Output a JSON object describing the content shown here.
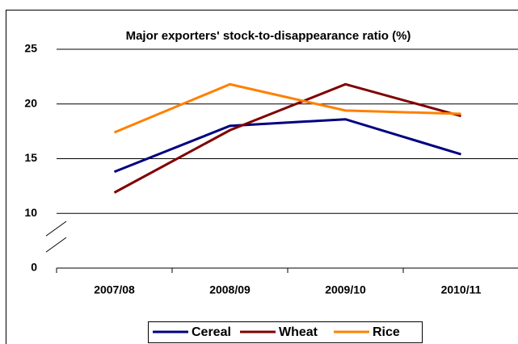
{
  "chart_data": {
    "type": "line",
    "title": "Major exporters'  stock-to-disappearance ratio (%)",
    "categories": [
      "2007/08",
      "2008/09",
      "2009/10",
      "2010/11"
    ],
    "series": [
      {
        "name": "Cereal",
        "color": "#000080",
        "values": [
          13.8,
          18.0,
          18.6,
          15.4
        ]
      },
      {
        "name": "Wheat",
        "color": "#800000",
        "values": [
          11.9,
          17.6,
          21.8,
          18.9
        ]
      },
      {
        "name": "Rice",
        "color": "#ff8000",
        "values": [
          17.4,
          21.8,
          19.4,
          19.1
        ]
      }
    ],
    "ylim": [
      0,
      25
    ],
    "yticks": [
      0,
      10,
      15,
      20,
      25
    ],
    "y_axis_break": true,
    "grid": true,
    "legend": "bottom"
  }
}
